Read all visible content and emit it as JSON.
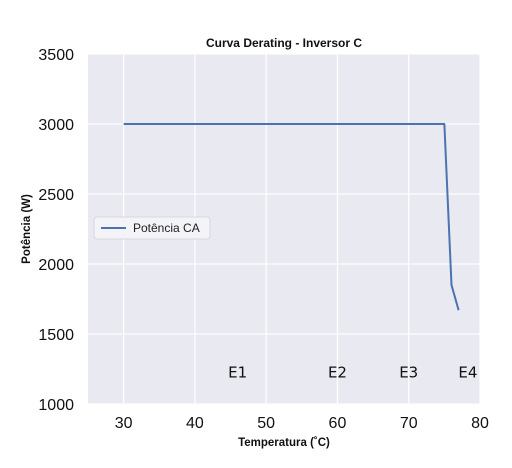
{
  "chart_data": {
    "type": "line",
    "title": "Curva Derating - Inversor C",
    "xlabel": "Temperatura (˚C)",
    "ylabel": "Potência (W)",
    "xlim": [
      25,
      80
    ],
    "ylim": [
      1000,
      3500
    ],
    "xticks": [
      30,
      40,
      50,
      60,
      70,
      80
    ],
    "yticks": [
      1000,
      1500,
      2000,
      2500,
      3000,
      3500
    ],
    "grid": true,
    "legend_position": "center-left",
    "background_color": "#e9e9f1",
    "grid_color": "#ffffff",
    "series": [
      {
        "name": "Potência CA",
        "color": "#4c72b0",
        "x": [
          30,
          75,
          76,
          77
        ],
        "y": [
          3000,
          3000,
          1850,
          1670
        ]
      }
    ],
    "annotations": [
      {
        "text": "E1",
        "x": 46,
        "y": 1190
      },
      {
        "text": "E2",
        "x": 60,
        "y": 1190
      },
      {
        "text": "E3",
        "x": 70,
        "y": 1190
      },
      {
        "text": "E4",
        "x": 78.3,
        "y": 1190
      }
    ]
  }
}
